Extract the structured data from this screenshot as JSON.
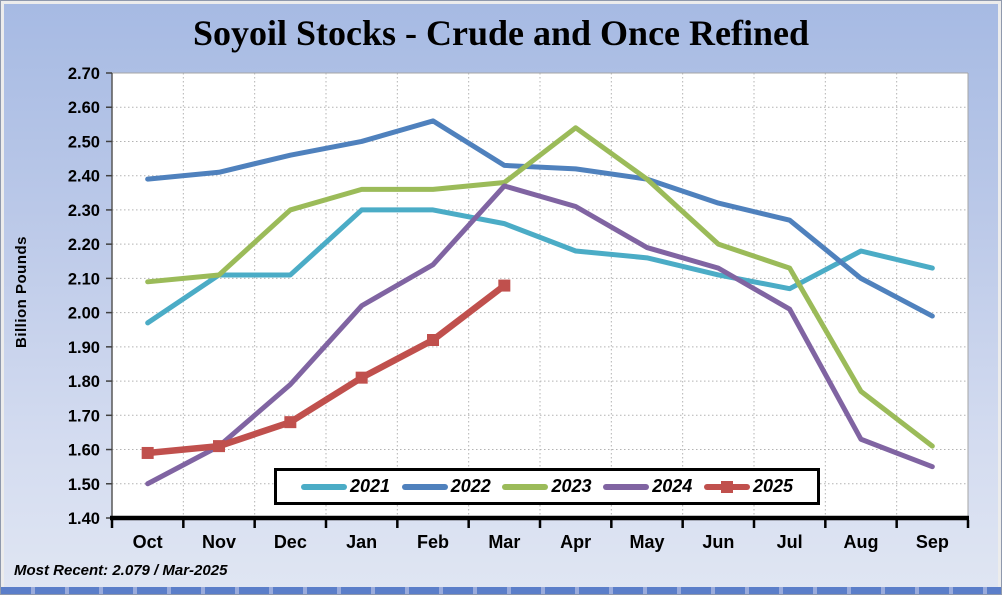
{
  "title": "Soyoil Stocks - Crude and Once Refined",
  "y_axis": {
    "title": "Billion Pounds"
  },
  "footer": {
    "most_recent": "Most Recent: 2.079 / Mar-2025"
  },
  "chart_data": {
    "type": "line",
    "title": "Soyoil Stocks - Crude and Once Refined",
    "ylabel": "Billion Pounds",
    "categories": [
      "Oct",
      "Nov",
      "Dec",
      "Jan",
      "Feb",
      "Mar",
      "Apr",
      "May",
      "Jun",
      "Jul",
      "Aug",
      "Sep"
    ],
    "ylim": [
      1.4,
      2.7
    ],
    "ytick_step": 0.1,
    "y_tick_labels": [
      "2.70",
      "2.60",
      "2.50",
      "2.40",
      "2.30",
      "2.20",
      "2.10",
      "2.00",
      "1.90",
      "1.80",
      "1.70",
      "1.60",
      "1.50",
      "1.40"
    ],
    "grid": true,
    "legend_position": "bottom-center-inside",
    "series": [
      {
        "name": "2021",
        "color": "#4BACC6",
        "marker": "none",
        "values": [
          1.97,
          2.11,
          2.11,
          2.3,
          2.3,
          2.26,
          2.18,
          2.16,
          2.11,
          2.07,
          2.18,
          2.13
        ]
      },
      {
        "name": "2022",
        "color": "#4F81BD",
        "marker": "none",
        "values": [
          2.39,
          2.41,
          2.46,
          2.5,
          2.56,
          2.43,
          2.42,
          2.39,
          2.32,
          2.27,
          2.1,
          1.99
        ]
      },
      {
        "name": "2023",
        "color": "#9BBB59",
        "marker": "none",
        "values": [
          2.09,
          2.11,
          2.3,
          2.36,
          2.36,
          2.38,
          2.54,
          2.39,
          2.2,
          2.13,
          1.77,
          1.61
        ]
      },
      {
        "name": "2024",
        "color": "#8064A2",
        "marker": "none",
        "values": [
          1.5,
          1.61,
          1.79,
          2.02,
          2.14,
          2.37,
          2.31,
          2.19,
          2.13,
          2.01,
          1.63,
          1.55
        ]
      },
      {
        "name": "2025",
        "color": "#C0504D",
        "marker": "square",
        "values": [
          1.59,
          1.61,
          1.68,
          1.81,
          1.92,
          2.079
        ]
      }
    ],
    "annotations": {
      "most_recent_value": "2.079",
      "most_recent_month": "Mar-2025"
    }
  }
}
